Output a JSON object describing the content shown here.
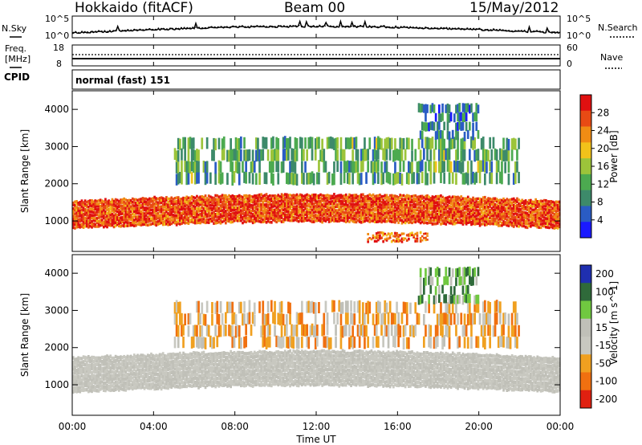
{
  "header": {
    "station": "Hokkaido (fitACF)",
    "beam": "Beam 00",
    "date": "15/May/2012"
  },
  "noise_panel": {
    "left_label": "N.Sky",
    "right_label": "N.Search",
    "left_ticks": [
      "10^5",
      "10^0"
    ],
    "right_ticks": [
      "10^5",
      "10^0"
    ]
  },
  "freq_panel": {
    "left_label_1": "Freq.",
    "left_label_2": "[MHz]",
    "right_label": "Nave",
    "left_ticks": [
      "18",
      "8"
    ],
    "right_ticks": [
      "60",
      "0"
    ]
  },
  "cpid": {
    "label": "CPID",
    "text": "normal (fast) 151"
  },
  "x_axis": {
    "title": "Time UT",
    "ticks": [
      "00:00",
      "04:00",
      "08:00",
      "12:00",
      "16:00",
      "20:00",
      "00:00"
    ]
  },
  "chart_data": [
    {
      "type": "heatmap",
      "title": "",
      "xlabel": "Time UT",
      "ylabel": "Slant Range [km]",
      "colorbar_label": "Power [dB]",
      "x_range": [
        "00:00",
        "24:00"
      ],
      "ylim": [
        180,
        4500
      ],
      "y_ticks": [
        1000,
        2000,
        3000,
        4000
      ],
      "colorbar_ticks": [
        4,
        8,
        12,
        16,
        20,
        24,
        28
      ],
      "colorbar_range": [
        0,
        32
      ],
      "colorscale": [
        "#1a1aff",
        "#2a5cc4",
        "#3d8a6a",
        "#4caa50",
        "#9cc43a",
        "#f2c21a",
        "#f08c14",
        "#e84a14",
        "#e01010"
      ],
      "features": [
        {
          "name": "main echo band",
          "time_start_h": 0,
          "time_end_h": 24,
          "range_km": [
            800,
            1500
          ],
          "power_db": 27
        },
        {
          "name": "upper scatter",
          "time_start_h": 5,
          "time_end_h": 22,
          "range_km": [
            2000,
            3200
          ],
          "power_db": 12
        },
        {
          "name": "late high-range patch",
          "time_start_h": 17,
          "time_end_h": 20,
          "range_km": [
            3200,
            4100
          ],
          "power_db": 8
        },
        {
          "name": "near-range patch",
          "time_start_h": 14.5,
          "time_end_h": 17.5,
          "range_km": [
            450,
            650
          ],
          "power_db": 26
        }
      ]
    },
    {
      "type": "heatmap",
      "title": "",
      "xlabel": "Time UT",
      "ylabel": "Slant Range [km]",
      "colorbar_label": "Velocity [m s^-1]",
      "x_range": [
        "00:00",
        "24:00"
      ],
      "ylim": [
        180,
        4500
      ],
      "y_ticks": [
        1000,
        2000,
        3000,
        4000
      ],
      "colorbar_ticks": [
        200,
        100,
        50,
        15,
        -15,
        -50,
        -100,
        -200
      ],
      "colorscale": [
        "#1f2fb0",
        "#2f6a3a",
        "#70c840",
        "#c0c0b8",
        "#c8c8c0",
        "#f0a020",
        "#f07010",
        "#e02010"
      ],
      "features": [
        {
          "name": "ground scatter band",
          "time_start_h": 0,
          "time_end_h": 24,
          "range_km": [
            800,
            1700
          ],
          "velocity_ms": 0
        },
        {
          "name": "upper scatter",
          "time_start_h": 5,
          "time_end_h": 22,
          "range_km": [
            2000,
            3200
          ],
          "velocity_ms": -40
        },
        {
          "name": "late high-range patch",
          "time_start_h": 17,
          "time_end_h": 20,
          "range_km": [
            3200,
            4100
          ],
          "velocity_ms": 60
        }
      ]
    }
  ]
}
